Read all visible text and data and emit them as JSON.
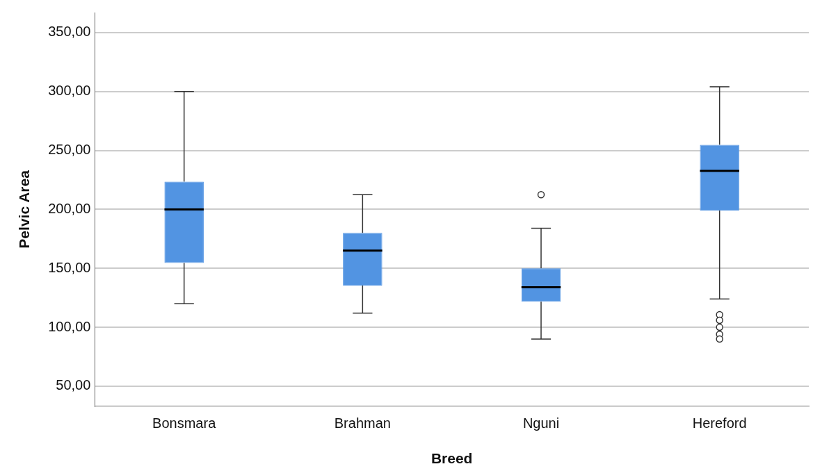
{
  "chart_data": {
    "type": "box",
    "xlabel": "Breed",
    "ylabel": "Pelvic Area",
    "categories": [
      "Bonsmara",
      "Brahman",
      "Nguni",
      "Hereford"
    ],
    "color": "#5294e2",
    "boxes": [
      {
        "low": 120,
        "q1": 154.6,
        "median": 200,
        "q3": 223.5,
        "high": 300
      },
      {
        "low": 112,
        "q1": 135.4,
        "median": 165,
        "q3": 180,
        "high": 212.5
      },
      {
        "low": 90,
        "q1": 121.7,
        "median": 134,
        "q3": 150,
        "high": 184,
        "outliers": [
          212.5
        ]
      },
      {
        "low": 124,
        "q1": 199,
        "median": 232.7,
        "q3": 254.8,
        "high": 304,
        "outliers": [
          110.7,
          106,
          100,
          94,
          90
        ]
      }
    ],
    "ylim": [
      33,
      367
    ],
    "yticks": [
      {
        "value": 50,
        "label": "50,00"
      },
      {
        "value": 100,
        "label": "100,00"
      },
      {
        "value": 150,
        "label": "150,00"
      },
      {
        "value": 200,
        "label": "200,00"
      },
      {
        "value": 250,
        "label": "250,00"
      },
      {
        "value": 300,
        "label": "300,00"
      },
      {
        "value": 350,
        "label": "350,00"
      }
    ],
    "grid": "y"
  }
}
